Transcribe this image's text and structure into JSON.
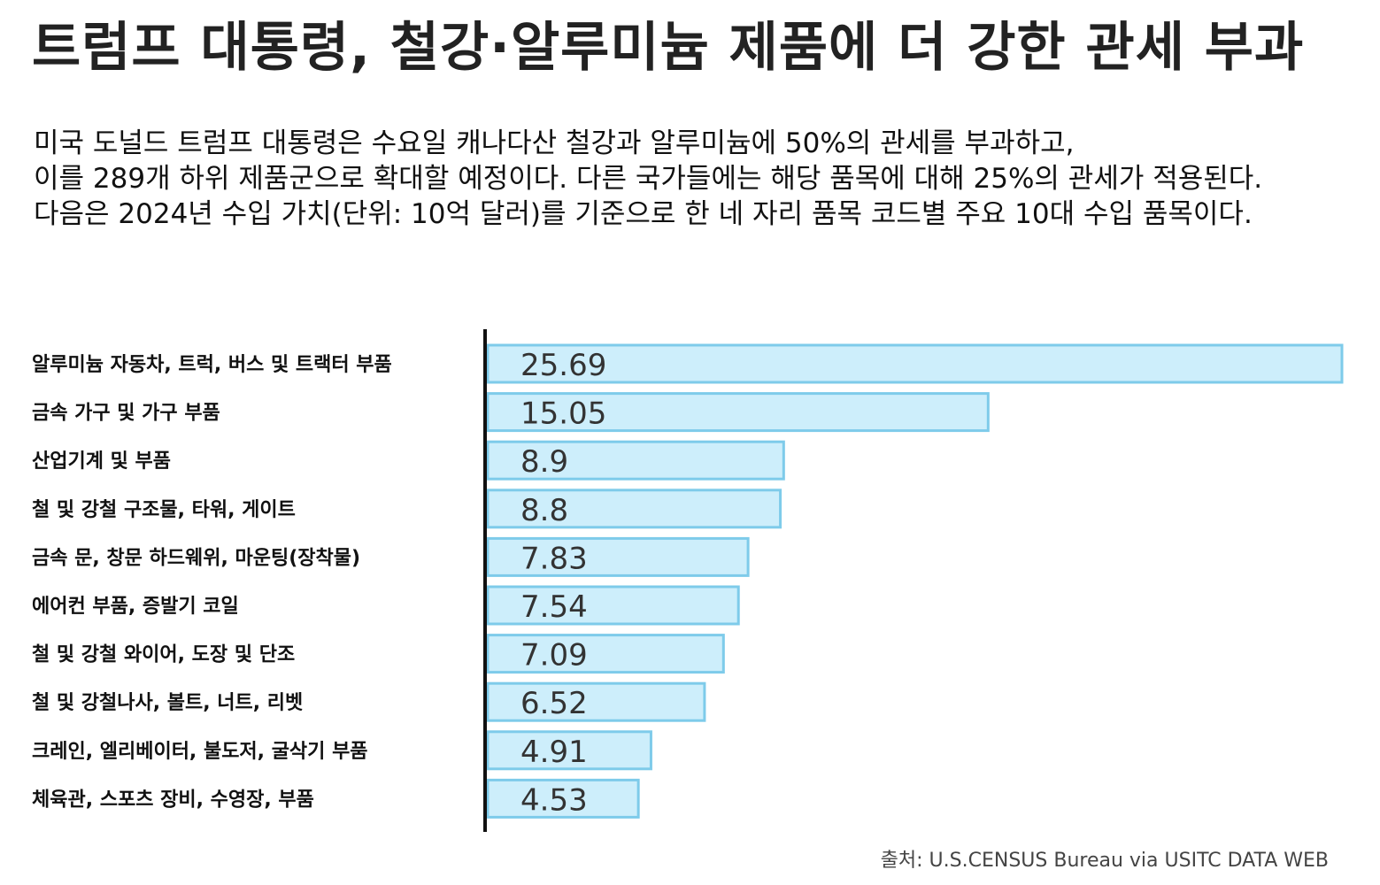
{
  "title": "트럼프 대통령, 철강·알루미늄 제품에 더 강한 관세 부과",
  "description": [
    "미국 도널드 트럼프 대통령은 수요일 캐나다산 철강과 알루미늄에 50%의 관세를 부과하고,",
    "이를 289개 하위 제품군으로 확대할 예정이다. 다른 국가들에는 해당 품목에 대해 25%의 관세가 적용된다.",
    "다음은 2024년 수입 가치(단위: 10억 달러)를 기준으로 한 네 자리 품목 코드별 주요 10대 수입 품목이다."
  ],
  "source": "출처: U.S.CENSUS Bureau via USITC DATA WEB",
  "colors": {
    "bar_fill": "#cdeefb",
    "bar_stroke": "#7ecbea",
    "axis": "#111111",
    "value_text": "#333333",
    "label_text": "#111111"
  },
  "chart_data": {
    "type": "bar",
    "orientation": "horizontal",
    "categories": [
      "알루미늄 자동차, 트럭, 버스 및 트랙터 부품",
      "금속 가구 및 가구 부품",
      "산업기계 및 부품",
      "철 및 강철 구조물, 타워, 게이트",
      "금속 문, 창문 하드웨위, 마운팅(장착물)",
      "에어컨 부품, 증발기 코일",
      "철 및 강철 와이어, 도장 및 단조",
      "철 및 강철나사, 볼트, 너트, 리벳",
      "크레인, 엘리베이터, 불도저, 굴삭기 부품",
      "체육관, 스포츠 장비, 수영장, 부품"
    ],
    "values": [
      25.69,
      15.05,
      8.9,
      8.8,
      7.83,
      7.54,
      7.09,
      6.52,
      4.91,
      4.53
    ],
    "value_labels": [
      "25.69",
      "15.05",
      "8.9",
      "8.8",
      "7.83",
      "7.54",
      "7.09",
      "6.52",
      "4.91",
      "4.53"
    ],
    "xlim": [
      0,
      25.69
    ],
    "grid": false,
    "legend": "none"
  }
}
